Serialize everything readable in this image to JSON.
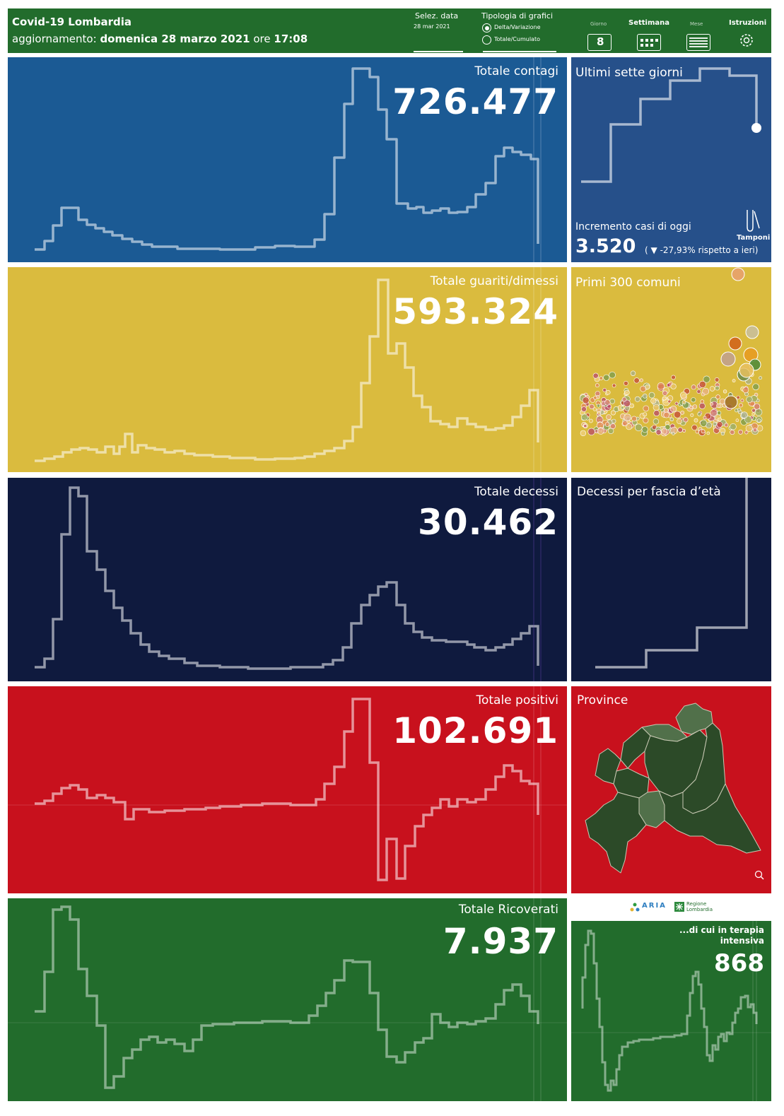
{
  "header": {
    "title": "Covid-19 Lombardia",
    "update_prefix": "aggiornamento:",
    "update_date": "domenica 28 marzo 2021",
    "update_time_prefix": "ore",
    "update_time": "17:08",
    "date_label": "Selez. data",
    "date_value": "28 mar 2021",
    "chart_type_label": "Tipologia di grafici",
    "option_delta": "Delta/Variazione",
    "option_total": "Totale/Cumulato",
    "selected_option": "Delta/Variazione",
    "period_day": "Giorno",
    "period_day_value": "8",
    "period_week": "Settimana",
    "period_month": "Mese",
    "instructions": "Istruzioni"
  },
  "panels": {
    "contagi": {
      "title": "Totale contagi",
      "value": "726.477",
      "color": "#1b5a94"
    },
    "guariti": {
      "title": "Totale guariti/dimessi",
      "value": "593.324",
      "color": "#dabb3e"
    },
    "decessi": {
      "title": "Totale decessi",
      "value": "30.462",
      "color": "#0f1a3e"
    },
    "positivi": {
      "title": "Totale positivi",
      "value": "102.691",
      "color": "#c8111d"
    },
    "ricoverati": {
      "title": "Totale Ricoverati",
      "value": "7.937",
      "color": "#226c2c"
    }
  },
  "side": {
    "seven_days": {
      "title": "Ultimi sette giorni",
      "increment_label": "Incremento casi di oggi",
      "increment_value": "3.520",
      "change_text": "-27,93% rispetto a  ieri)",
      "change_open": "(",
      "tamponi_label": "Tamponi",
      "color": "#26508a"
    },
    "comuni": {
      "title": "Primi 300 comuni",
      "color": "#dabb3e"
    },
    "eta": {
      "title": "Decessi per fascia d’età",
      "color": "#0f1a3e"
    },
    "province": {
      "title": "Province",
      "color": "#c8111d"
    },
    "intensiva": {
      "title": "...di cui in terapia intensiva",
      "value": "868",
      "color": "#226c2c"
    },
    "logos": {
      "aria": "ARIA",
      "regione": "Regione Lombardia"
    }
  }
}
